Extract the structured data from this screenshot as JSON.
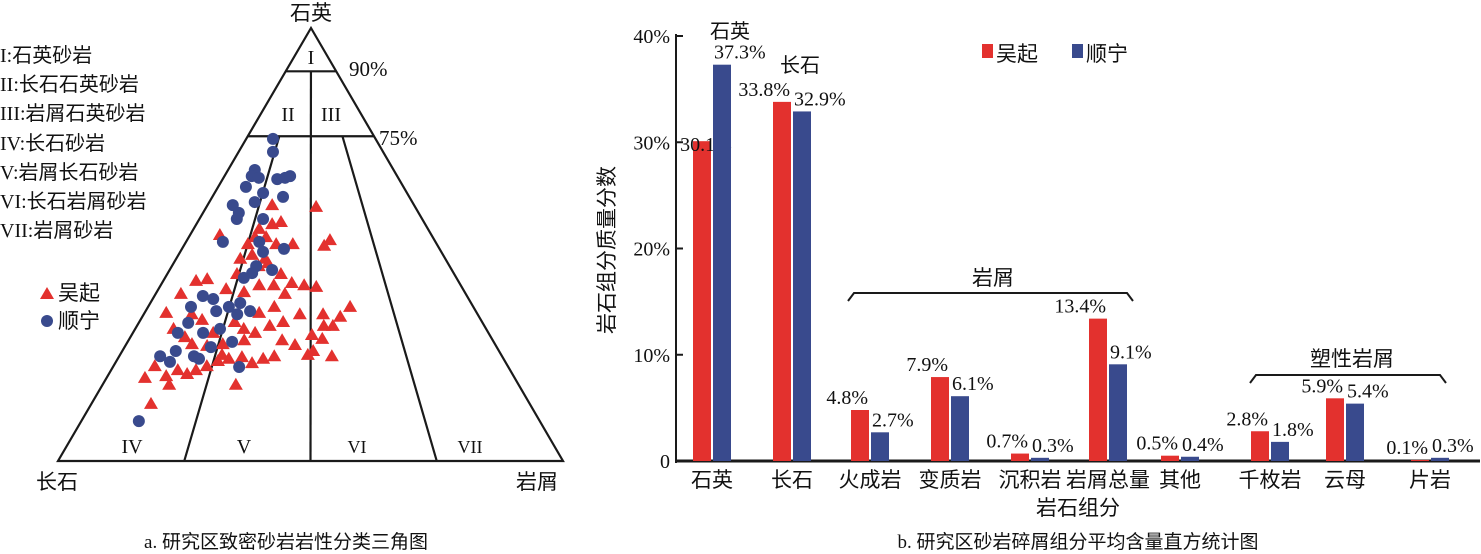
{
  "colors": {
    "wuqi": "#e3312e",
    "shunning": "#394a8d",
    "line": "#1a1a1a"
  },
  "chart_data": [
    {
      "type": "scatter",
      "subtype": "ternary",
      "caption": "a. 研究区致密砂岩岩性分类三角图",
      "apex_labels": {
        "top": "石英",
        "left": "长石",
        "right": "岩屑"
      },
      "quartz_boundaries": [
        90,
        75
      ],
      "boundary_labels": [
        "90%",
        "75%"
      ],
      "lithic_ratio_splits": [
        25,
        50,
        75
      ],
      "regions": [
        "I",
        "II",
        "III",
        "IV",
        "V",
        "VI",
        "VII"
      ],
      "region_legend": [
        "I:石英砂岩",
        "II:长石石英砂岩",
        "III:岩屑石英砂岩",
        "IV:长石砂岩",
        "V:岩屑长石砂岩",
        "VI:长石岩屑砂岩",
        "VII:岩屑砂岩"
      ],
      "series": [
        {
          "name": "吴起",
          "marker": "triangle",
          "points_QFR": [
            [
              58.7,
              19.6,
              21.7
            ],
            [
              59.1,
              28.1,
              12.8
            ],
            [
              51.0,
              20.7,
              28.3
            ],
            [
              49.7,
              22.5,
              27.8
            ],
            [
              55.2,
              28.3,
              16.5
            ],
            [
              54.7,
              30.3,
              15.0
            ],
            [
              53.6,
              33.4,
              13.0
            ],
            [
              51.7,
              35.2,
              13.1
            ],
            [
              51.7,
              33.0,
              15.3
            ],
            [
              50.1,
              31.8,
              18.1
            ],
            [
              50.1,
              28.5,
              21.4
            ],
            [
              52.2,
              41.9,
              5.9
            ],
            [
              50.1,
              37.4,
              12.5
            ],
            [
              46.7,
              40.6,
              12.7
            ],
            [
              47.6,
              37.8,
              14.6
            ],
            [
              46.7,
              35.7,
              17.6
            ],
            [
              43.2,
              34.3,
              22.5
            ],
            [
              40.6,
              37.0,
              22.4
            ],
            [
              41.1,
              33.2,
              25.7
            ],
            [
              40.6,
              31.0,
              28.4
            ],
            [
              40.2,
              28.8,
              31.0
            ],
            [
              40.6,
              39.9,
              19.5
            ],
            [
              43.2,
              43.0,
              13.8
            ],
            [
              41.6,
              51.9,
              6.5
            ],
            [
              42.0,
              49.5,
              8.5
            ],
            [
              38.6,
              56.4,
              5.0
            ],
            [
              39.7,
              46.9,
              13.4
            ],
            [
              39.0,
              43.7,
              17.3
            ],
            [
              38.6,
              35.8,
              25.6
            ],
            [
              35.6,
              39.4,
              25.0
            ],
            [
              34.2,
              43.1,
              22.7
            ],
            [
              33.9,
              35.2,
              30.9
            ],
            [
              33.9,
              30.6,
              35.5
            ],
            [
              35.6,
              24.4,
              40.0
            ],
            [
              33.3,
              27.5,
              39.2
            ],
            [
              31.2,
              30.0,
              38.8
            ],
            [
              31.2,
              31.8,
              37.0
            ],
            [
              32.1,
              39.4,
              28.5
            ],
            [
              31.2,
              42.5,
              26.3
            ],
            [
              29.6,
              46.2,
              24.2
            ],
            [
              30.5,
              48.0,
              21.5
            ],
            [
              34.2,
              61.5,
              4.3
            ],
            [
              33.9,
              56.6,
              9.5
            ],
            [
              32.6,
              55.2,
              12.2
            ],
            [
              30.5,
              61.9,
              7.6
            ],
            [
              28.6,
              60.6,
              10.8
            ],
            [
              27.0,
              60.0,
              13.0
            ],
            [
              26.6,
              57.2,
              16.2
            ],
            [
              27.0,
              53.9,
              19.1
            ],
            [
              27.9,
              49.2,
              22.9
            ],
            [
              27.9,
              41.7,
              30.4
            ],
            [
              26.8,
              39.7,
              33.5
            ],
            [
              29.1,
              35.2,
              35.7
            ],
            [
              28.2,
              33.6,
              38.2
            ],
            [
              25.4,
              36.8,
              37.8
            ],
            [
              24.2,
              33.7,
              42.1
            ],
            [
              24.2,
              45.1,
              30.7
            ],
            [
              23.6,
              47.6,
              28.8
            ],
            [
              22.6,
              50.3,
              27.1
            ],
            [
              24.0,
              51.6,
              24.4
            ],
            [
              23.6,
              54.4,
              22.0
            ],
            [
              23.1,
              56.8,
              20.1
            ],
            [
              21.9,
              59.6,
              18.5
            ],
            [
              21.0,
              62.2,
              16.8
            ],
            [
              20.1,
              64.4,
              15.5
            ],
            [
              21.0,
              65.8,
              13.2
            ],
            [
              19.6,
              68.8,
              11.6
            ],
            [
              21.9,
              69.9,
              8.2
            ],
            [
              19.2,
              73.2,
              7.6
            ],
            [
              17.6,
              69.2,
              13.2
            ],
            [
              17.6,
              56.0,
              26.4
            ],
            [
              13.2,
              75.0,
              11.8
            ],
            [
              24.5,
              38.3,
              37.2
            ],
            [
              24.5,
              55.3,
              20.2
            ],
            [
              29.6,
              54.5,
              15.9
            ],
            [
              32.1,
              49.0,
              18.9
            ],
            [
              45.0,
              37.8,
              17.2
            ],
            [
              45.7,
              35.6,
              18.7
            ]
          ]
        },
        {
          "name": "顺宁",
          "marker": "circle",
          "points_QFR": [
            [
              74.4,
              20.3,
              5.3
            ],
            [
              71.4,
              21.8,
              6.8
            ],
            [
              67.2,
              27.5,
              5.3
            ],
            [
              65.8,
              28.8,
              5.4
            ],
            [
              65.4,
              27.6,
              7.0
            ],
            [
              65.1,
              24.1,
              10.8
            ],
            [
              65.4,
              22.4,
              12.2
            ],
            [
              65.8,
              21.2,
              13.0
            ],
            [
              63.3,
              31.2,
              5.5
            ],
            [
              61.9,
              28.5,
              9.6
            ],
            [
              61.0,
              25.0,
              14.0
            ],
            [
              59.8,
              31.2,
              9.0
            ],
            [
              59.1,
              35.9,
              5.0
            ],
            [
              57.3,
              35.6,
              7.1
            ],
            [
              55.9,
              36.7,
              7.4
            ],
            [
              55.9,
              31.5,
              12.6
            ],
            [
              50.6,
              42.1,
              7.3
            ],
            [
              50.6,
              34.9,
              14.5
            ],
            [
              48.3,
              35.3,
              16.4
            ],
            [
              49.0,
              30.8,
              20.2
            ],
            [
              45.0,
              38.3,
              16.7
            ],
            [
              43.4,
              39.9,
              16.7
            ],
            [
              44.1,
              35.6,
              20.3
            ],
            [
              42.3,
              42.1,
              15.6
            ],
            [
              38.1,
              52.3,
              9.6
            ],
            [
              37.4,
              50.6,
              12.0
            ],
            [
              35.6,
              55.9,
              8.5
            ],
            [
              34.6,
              51.4,
              14.0
            ],
            [
              35.6,
              48.4,
              16.0
            ],
            [
              36.5,
              45.7,
              17.8
            ],
            [
              34.6,
              44.7,
              20.7
            ],
            [
              33.9,
              47.6,
              18.5
            ],
            [
              30.5,
              52.7,
              16.8
            ],
            [
              31.9,
              58.3,
              9.8
            ],
            [
              29.6,
              61.5,
              8.9
            ],
            [
              29.6,
              56.5,
              13.9
            ],
            [
              27.5,
              51.8,
              20.7
            ],
            [
              26.3,
              56.6,
              17.1
            ],
            [
              25.4,
              64.0,
              10.6
            ],
            [
              24.2,
              67.7,
              8.1
            ],
            [
              22.9,
              66.4,
              10.7
            ],
            [
              24.2,
              61.0,
              14.8
            ],
            [
              23.6,
              60.3,
              16.1
            ],
            [
              21.7,
              53.3,
              25.0
            ],
            [
              9.2,
              79.4,
              11.4
            ]
          ]
        }
      ]
    },
    {
      "type": "bar",
      "caption": "b. 研究区砂岩碎屑组分平均含量直方统计图",
      "xlabel": "岩石组分",
      "ylabel": "岩石组分质量分数",
      "ylim": [
        0,
        40
      ],
      "yticks": [
        0,
        10,
        20,
        30,
        40
      ],
      "ytick_labels": [
        "0",
        "10%",
        "20%",
        "30%",
        "40%"
      ],
      "categories": [
        "石英",
        "长石",
        "火成岩",
        "变质岩",
        "沉积岩",
        "岩屑总量",
        "其他",
        "千枚岩",
        "云母",
        "片岩"
      ],
      "series": [
        {
          "name": "吴起",
          "values": [
            30.1,
            33.8,
            4.8,
            7.9,
            0.7,
            13.4,
            0.5,
            2.8,
            5.9,
            0.1
          ],
          "labels": [
            "30.1%",
            "33.8%",
            "4.8%",
            "7.9%",
            "0.7%",
            "13.4%",
            "0.5%",
            "2.8%",
            "5.9%",
            "0.1%"
          ]
        },
        {
          "name": "顺宁",
          "values": [
            37.3,
            32.9,
            2.7,
            6.1,
            0.3,
            9.1,
            0.4,
            1.8,
            5.4,
            0.3
          ],
          "labels": [
            "37.3%",
            "32.9%",
            "2.7%",
            "6.1%",
            "0.3%",
            "9.1%",
            "0.4%",
            "1.8%",
            "5.4%",
            "0.3%"
          ]
        }
      ],
      "annotations": {
        "quartz": "石英",
        "feldspar": "长石"
      },
      "groups": [
        {
          "label": "岩屑",
          "from": "火成岩",
          "to": "岩屑总量"
        },
        {
          "label": "塑性岩屑",
          "from": "千枚岩",
          "to": "片岩"
        }
      ],
      "legend": {
        "position": "top-center",
        "items": [
          "吴起",
          "顺宁"
        ]
      },
      "grid": false
    }
  ]
}
